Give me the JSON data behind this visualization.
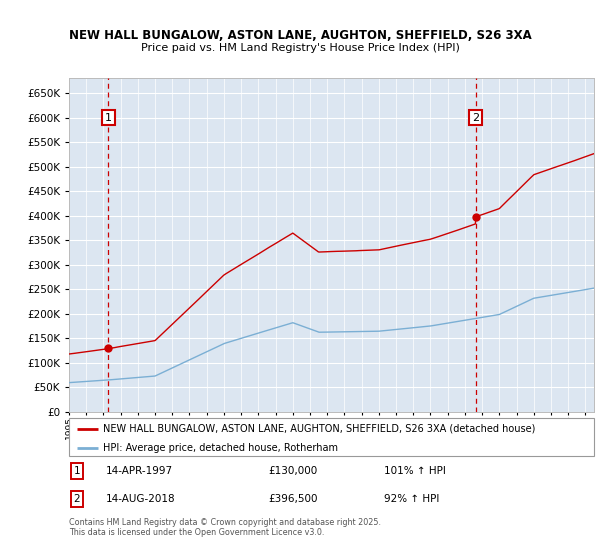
{
  "title": "NEW HALL BUNGALOW, ASTON LANE, AUGHTON, SHEFFIELD, S26 3XA",
  "subtitle": "Price paid vs. HM Land Registry's House Price Index (HPI)",
  "ylabel_ticks": [
    0,
    50000,
    100000,
    150000,
    200000,
    250000,
    300000,
    350000,
    400000,
    450000,
    500000,
    550000,
    600000,
    650000
  ],
  "xmin": 1995.0,
  "xmax": 2025.5,
  "ymin": 0,
  "ymax": 680000,
  "sale1_date": 1997.29,
  "sale1_price": 130000,
  "sale1_label": "1",
  "sale1_display": "14-APR-1997",
  "sale1_price_display": "£130,000",
  "sale1_hpi": "101% ↑ HPI",
  "sale2_date": 2018.62,
  "sale2_price": 396500,
  "sale2_label": "2",
  "sale2_display": "14-AUG-2018",
  "sale2_price_display": "£396,500",
  "sale2_hpi": "92% ↑ HPI",
  "red_color": "#cc0000",
  "blue_color": "#7bafd4",
  "bg_color": "#dce6f1",
  "grid_color": "#ffffff",
  "legend_line1": "NEW HALL BUNGALOW, ASTON LANE, AUGHTON, SHEFFIELD, S26 3XA (detached house)",
  "legend_line2": "HPI: Average price, detached house, Rotherham",
  "footnote": "Contains HM Land Registry data © Crown copyright and database right 2025.\nThis data is licensed under the Open Government Licence v3.0."
}
